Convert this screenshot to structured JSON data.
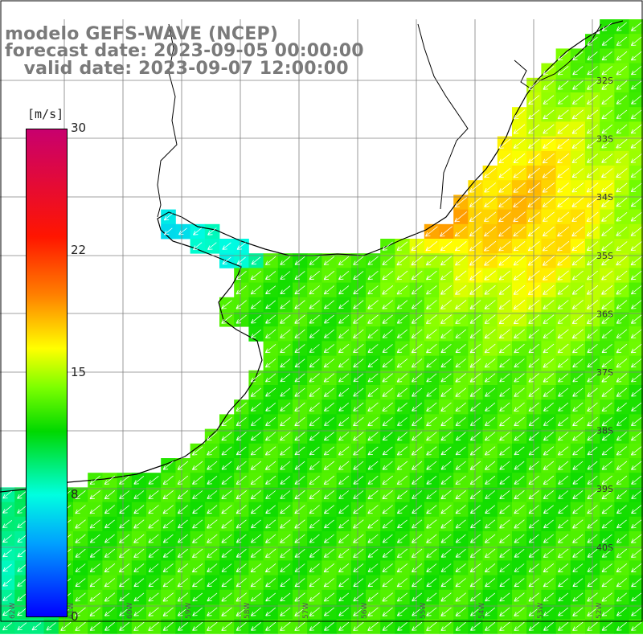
{
  "title": {
    "line1": "modelo GEFS-WAVE (NCEP)",
    "line2": "forecast date: 2023-09-05 00:00:00",
    "line3": "   valid date: 2023-09-07 12:00:00"
  },
  "colorbar": {
    "unit": "[m/s]",
    "min": 0,
    "max": 30,
    "ticks": [
      "30",
      "22",
      "15",
      "8",
      "0"
    ]
  },
  "map": {
    "variable": "wind speed",
    "arrow_direction": "towards south-west",
    "lat_labels": [
      "32S",
      "33S",
      "34S",
      "35S",
      "36S",
      "37S",
      "38S",
      "39S",
      "40S"
    ],
    "lon_labels": [
      "62W",
      "61W",
      "60W",
      "59W",
      "58W",
      "57W",
      "56W",
      "55W",
      "54W",
      "53W",
      "52W"
    ],
    "colors": {
      "land": "#ffffff",
      "coast": "#000000",
      "grid": "#808080",
      "arrows": "#ffffff"
    }
  }
}
